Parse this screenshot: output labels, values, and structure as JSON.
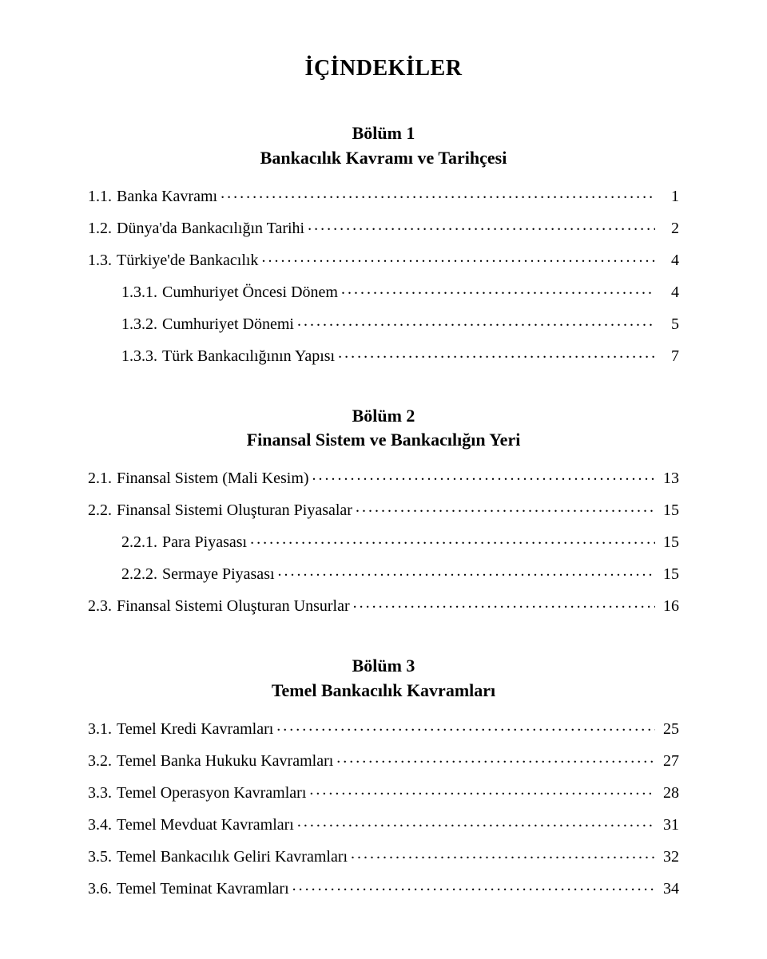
{
  "doc": {
    "title": "İÇİNDEKİLER",
    "font": {
      "family": "Times New Roman",
      "title_size_pt": 20,
      "heading_size_pt": 16,
      "entry_size_pt": 14,
      "weight_title": "bold",
      "weight_heading": "bold",
      "weight_entry": "normal"
    },
    "colors": {
      "text": "#000000",
      "background": "#ffffff"
    },
    "sections": [
      {
        "heading_lines": [
          "Bölüm 1",
          "Bankacılık Kavramı ve Tarihçesi"
        ],
        "entries": [
          {
            "level": 1,
            "num": "1.1.",
            "label": "Banka Kavramı",
            "page": "1"
          },
          {
            "level": 1,
            "num": "1.2.",
            "label": "Dünya'da Bankacılığın Tarihi",
            "page": "2"
          },
          {
            "level": 1,
            "num": "1.3.",
            "label": "Türkiye'de Bankacılık",
            "page": "4"
          },
          {
            "level": 2,
            "num": "1.3.1.",
            "label": "Cumhuriyet Öncesi Dönem",
            "page": "4"
          },
          {
            "level": 2,
            "num": "1.3.2.",
            "label": "Cumhuriyet Dönemi",
            "page": "5"
          },
          {
            "level": 2,
            "num": "1.3.3.",
            "label": "Türk Bankacılığının Yapısı",
            "page": "7"
          }
        ]
      },
      {
        "heading_lines": [
          "Bölüm 2",
          "Finansal Sistem ve Bankacılığın Yeri"
        ],
        "entries": [
          {
            "level": 1,
            "num": "2.1.",
            "label": "Finansal Sistem (Mali Kesim)",
            "page": "13"
          },
          {
            "level": 1,
            "num": "2.2.",
            "label": "Finansal Sistemi Oluşturan Piyasalar",
            "page": "15"
          },
          {
            "level": 2,
            "num": "2.2.1.",
            "label": "Para Piyasası",
            "page": "15"
          },
          {
            "level": 2,
            "num": "2.2.2.",
            "label": "Sermaye Piyasası",
            "page": "15"
          },
          {
            "level": 1,
            "num": "2.3.",
            "label": "Finansal Sistemi Oluşturan Unsurlar",
            "page": "16"
          }
        ]
      },
      {
        "heading_lines": [
          "Bölüm 3",
          "Temel Bankacılık Kavramları"
        ],
        "entries": [
          {
            "level": 1,
            "num": "3.1.",
            "label": "Temel Kredi Kavramları",
            "page": "25"
          },
          {
            "level": 1,
            "num": "3.2.",
            "label": "Temel Banka Hukuku Kavramları",
            "page": "27"
          },
          {
            "level": 1,
            "num": "3.3.",
            "label": "Temel Operasyon Kavramları",
            "page": "28"
          },
          {
            "level": 1,
            "num": "3.4.",
            "label": "Temel Mevduat Kavramları",
            "page": "31"
          },
          {
            "level": 1,
            "num": "3.5.",
            "label": "Temel Bankacılık Geliri Kavramları",
            "page": "32"
          },
          {
            "level": 1,
            "num": "3.6.",
            "label": "Temel Teminat Kavramları",
            "page": "34"
          }
        ]
      }
    ]
  }
}
